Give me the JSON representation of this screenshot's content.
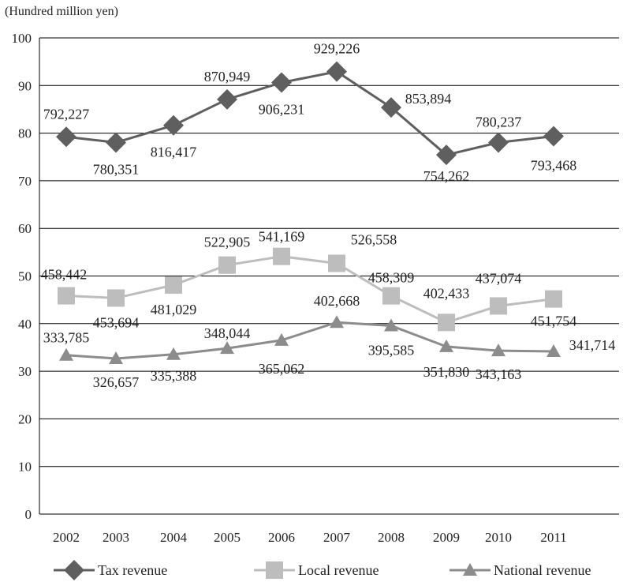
{
  "chart_data": {
    "type": "line",
    "unit_label": "(Hundred million yen)",
    "categories": [
      "2002",
      "2003",
      "2004",
      "2005",
      "2006",
      "2007",
      "2008",
      "2009",
      "2010",
      "2011"
    ],
    "ylim": [
      0,
      100
    ],
    "yticks": [
      "0",
      "10",
      "20",
      "30",
      "40",
      "50",
      "60",
      "70",
      "80",
      "90",
      "100"
    ],
    "grid": true,
    "legend_position": "bottom",
    "series": [
      {
        "name": "Tax revenue",
        "marker": "diamond",
        "color": "#5f5f5f",
        "values": [
          79.2227,
          78.0351,
          81.6417,
          87.0949,
          90.6231,
          92.9226,
          85.3894,
          75.4262,
          78.0237,
          79.3468
        ],
        "labels": [
          "792,227",
          "780,351",
          "816,417",
          "870,949",
          "906,231",
          "929,226",
          "853,894",
          "754,262",
          "780,237",
          "793,468"
        ]
      },
      {
        "name": "Local revenue",
        "marker": "square",
        "color": "#bdbdbd",
        "values": [
          45.8442,
          45.3694,
          48.1029,
          52.2905,
          54.1169,
          52.6558,
          45.8309,
          40.2433,
          43.7074,
          45.1754
        ],
        "labels": [
          "458,442",
          "453,694",
          "481,029",
          "522,905",
          "541,169",
          "526,558",
          "458,309",
          "402,433",
          "437,074",
          "451,754"
        ]
      },
      {
        "name": "National revenue",
        "marker": "triangle",
        "color": "#8c8c8c",
        "values": [
          33.3785,
          32.6657,
          33.5388,
          34.8044,
          36.5062,
          40.2668,
          39.5585,
          35.183,
          34.3163,
          34.1714
        ],
        "labels": [
          "333,785",
          "326,657",
          "335,388",
          "348,044",
          "365,062",
          "402,668",
          "395,585",
          "351,830",
          "343,163",
          "341,714"
        ]
      }
    ]
  }
}
